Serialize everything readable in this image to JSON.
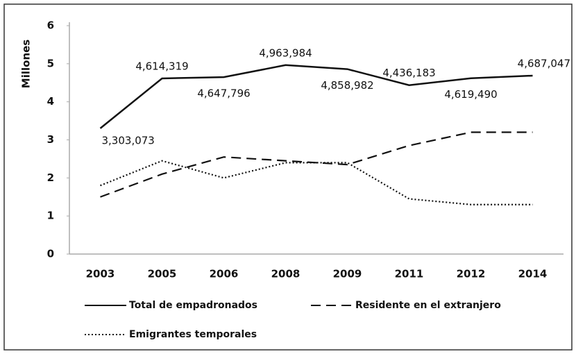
{
  "chart_data": {
    "type": "line",
    "y_label": "Millones",
    "categories": [
      "2003",
      "2005",
      "2006",
      "2008",
      "2009",
      "2011",
      "2012",
      "2014"
    ],
    "series": [
      {
        "name": "Total de empadronados",
        "color": "#111111",
        "dash": "solid",
        "values": [
          3.303073,
          4.614319,
          4.647796,
          4.963984,
          4.858982,
          4.436183,
          4.61949,
          4.687047
        ],
        "value_labels": [
          "3,303,073",
          "4,614,319",
          "4,647,796",
          "4,963,984",
          "4,858,982",
          "4,436,183",
          "4,619,490",
          "4,687,047"
        ]
      },
      {
        "name": "Residente en el extranjero",
        "color": "#111111",
        "dash": "dashed",
        "values": [
          1.5,
          2.1,
          2.55,
          2.45,
          2.35,
          2.85,
          3.2,
          3.2
        ]
      },
      {
        "name": "Emigrantes temporales",
        "color": "#111111",
        "dash": "dotted",
        "values": [
          1.8,
          2.45,
          2.0,
          2.4,
          2.4,
          1.45,
          1.3,
          1.3
        ]
      }
    ],
    "ylim": [
      0,
      6
    ],
    "yticks": [
      0,
      1,
      2,
      3,
      4,
      5,
      6
    ],
    "grid": false
  }
}
